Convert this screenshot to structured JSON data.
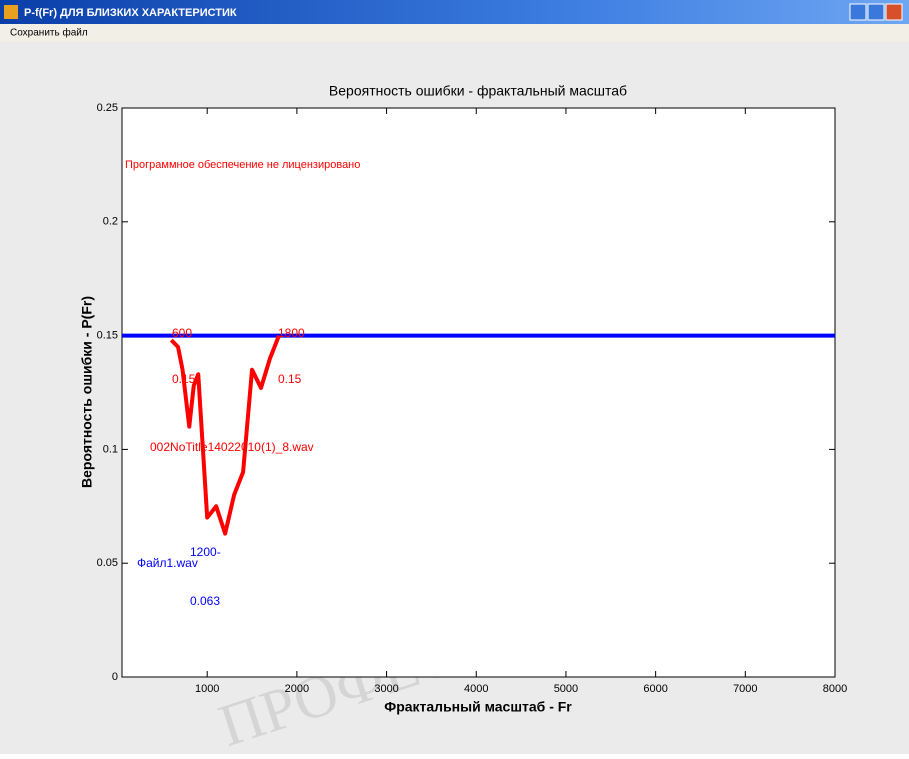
{
  "window": {
    "title": "P-f(Fr) ДЛЯ БЛИЗКИХ ХАРАКТЕРИСТИК",
    "menu": [
      "Сохранить файл"
    ]
  },
  "watermark": "ПРОФЕСІОНАЛІЗМ",
  "chart_data": {
    "type": "line",
    "title": "Вероятность ошибки - фрактальный масштаб",
    "xlabel": "Фрактальный масштаб - Fr",
    "ylabel": "Вероятность ошибки - P(Fr)",
    "xlim": [
      50,
      8000
    ],
    "xticks": [
      1000,
      2000,
      3000,
      4000,
      5000,
      6000,
      7000,
      8000
    ],
    "ylim": [
      0,
      0.25
    ],
    "yticks": [
      0,
      0.05,
      0.1,
      0.15,
      0.2,
      0.25
    ],
    "series": [
      {
        "name": "002NoTitle14022010(1)_8.wav",
        "color": "#ff0000",
        "x": [
          600,
          675,
          725,
          800,
          850,
          900,
          1000,
          1100,
          1200,
          1300,
          1400,
          1500,
          1600,
          1700,
          1800
        ],
        "values": [
          0.148,
          0.145,
          0.135,
          0.11,
          0.128,
          0.133,
          0.07,
          0.075,
          0.063,
          0.08,
          0.09,
          0.135,
          0.127,
          0.14,
          0.15
        ]
      },
      {
        "name": "Файл1.wav",
        "color": "#0000ff",
        "x": [
          50,
          8000
        ],
        "values": [
          0.15,
          0.15
        ]
      }
    ],
    "annotations": [
      "Программное обеспечение не лицензировано",
      "600",
      "0.15",
      "1800",
      "0.15",
      "1200-",
      "0.063"
    ]
  }
}
